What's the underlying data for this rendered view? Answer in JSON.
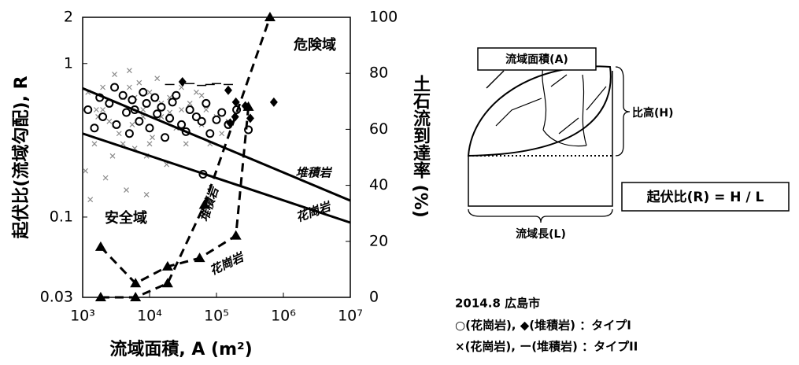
{
  "chart_data": {
    "type": "scatter",
    "x_label": "流域面積, A (m²)",
    "y_label": "起伏比(流域勾配), R",
    "y2_label": "土石流到達率 (%)",
    "xlog": true,
    "ylog": true,
    "xlim": [
      1000,
      10000000
    ],
    "ylim": [
      0.03,
      2
    ],
    "y2lim": [
      0,
      100
    ],
    "xticks": [
      {
        "value": 1000,
        "label": "10³"
      },
      {
        "value": 10000,
        "label": "10⁴"
      },
      {
        "value": 100000,
        "label": "10⁵"
      },
      {
        "value": 1000000,
        "label": "10⁶"
      },
      {
        "value": 10000000,
        "label": "10⁷"
      }
    ],
    "yticks": [
      0.03,
      0.1,
      1,
      2
    ],
    "y2ticks": [
      0,
      20,
      40,
      60,
      80,
      100
    ],
    "series": [
      {
        "marker": "x",
        "color": "#8a8a8a",
        "x": [
          1100,
          1300,
          1500,
          1700,
          2000,
          2200,
          2500,
          2800,
          3000,
          3500,
          4000,
          4500,
          5000,
          5500,
          6000,
          7000,
          8000,
          9000,
          10000,
          11000,
          13000,
          15000,
          18000,
          20000,
          25000,
          30000,
          35000,
          40000,
          50000,
          60000,
          70000,
          80000,
          100000,
          120000,
          150000,
          2000,
          3000,
          6000,
          10000,
          1200,
          1600,
          2500,
          4000,
          8000,
          15000,
          30000,
          5000,
          9000,
          20000,
          60000
        ],
        "values": [
          0.2,
          0.13,
          0.3,
          0.45,
          0.7,
          0.18,
          0.55,
          0.25,
          0.85,
          0.35,
          0.6,
          0.15,
          0.9,
          0.4,
          0.28,
          0.75,
          0.5,
          0.14,
          0.65,
          0.33,
          0.8,
          0.45,
          0.22,
          0.6,
          0.38,
          0.7,
          0.3,
          0.55,
          0.65,
          0.4,
          0.5,
          0.3,
          0.45,
          0.35,
          0.42,
          0.5,
          0.4,
          0.6,
          0.3,
          0.65,
          0.5,
          0.42,
          0.3,
          0.45,
          0.55,
          0.5,
          0.7,
          0.25,
          0.48,
          0.62
        ]
      },
      {
        "marker": "dash",
        "color": "#000000",
        "x": [
          20000,
          40000,
          60000,
          80000,
          100000,
          150000
        ],
        "values": [
          0.73,
          0.74,
          0.72,
          0.73,
          0.74,
          0.73
        ]
      },
      {
        "marker": "circle",
        "color": "#000000",
        "x": [
          1200,
          1500,
          1800,
          2000,
          2500,
          3000,
          3200,
          4000,
          4500,
          5000,
          5500,
          6000,
          7000,
          8000,
          9000,
          10000,
          12000,
          13000,
          15000,
          17000,
          20000,
          22000,
          25000,
          30000,
          35000,
          40000,
          50000,
          60000,
          70000,
          80000,
          100000,
          120000,
          150000,
          200000,
          300000,
          63000
        ],
        "values": [
          0.5,
          0.38,
          0.6,
          0.45,
          0.55,
          0.7,
          0.4,
          0.62,
          0.48,
          0.35,
          0.58,
          0.5,
          0.42,
          0.65,
          0.55,
          0.38,
          0.6,
          0.47,
          0.52,
          0.33,
          0.44,
          0.56,
          0.62,
          0.4,
          0.36,
          0.5,
          0.45,
          0.42,
          0.55,
          0.35,
          0.43,
          0.48,
          0.4,
          0.5,
          0.37,
          0.19
        ]
      },
      {
        "marker": "diamond",
        "color": "#000000",
        "x": [
          31000,
          150000,
          195000,
          270000,
          190000,
          320000,
          720000,
          160000
        ],
        "values": [
          0.76,
          0.67,
          0.56,
          0.53,
          0.45,
          0.44,
          0.56,
          0.41
        ]
      },
      {
        "marker": "solid-line",
        "color": "#000000",
        "x": [
          1000,
          10000000
        ],
        "values": [
          0.69,
          0.128
        ]
      },
      {
        "marker": "solid-line",
        "color": "#000000",
        "x": [
          1000,
          10000000
        ],
        "values": [
          0.35,
          0.092
        ]
      },
      {
        "marker": "triangle-dashed",
        "color": "#000000",
        "axis": "y2",
        "x": [
          1860,
          6170,
          18600,
          56000,
          195000,
          300000
        ],
        "values": [
          18,
          5,
          11,
          14,
          22,
          68
        ]
      },
      {
        "marker": "triangle-dashed",
        "color": "#000000",
        "axis": "y2",
        "x": [
          1860,
          6170,
          18600,
          66000,
          630000
        ],
        "values": [
          0,
          0,
          5,
          33,
          100
        ]
      }
    ],
    "annotations": [
      "危険域",
      "安全域",
      "堆積岩",
      "花崗岩",
      "堆積岩",
      "花崗岩"
    ]
  },
  "notes": [
    "2014.8 広島市",
    "○(花崗岩), ◆(堆積岩) ：タイプI",
    "×(花崗岩), ー(堆積岩) ：タイプII"
  ],
  "diagram": {
    "area_label": "流域面積(A)",
    "height_label": "比高(H)",
    "formula": "起伏比(R) = H / L",
    "length_label": "流域長(L)"
  }
}
